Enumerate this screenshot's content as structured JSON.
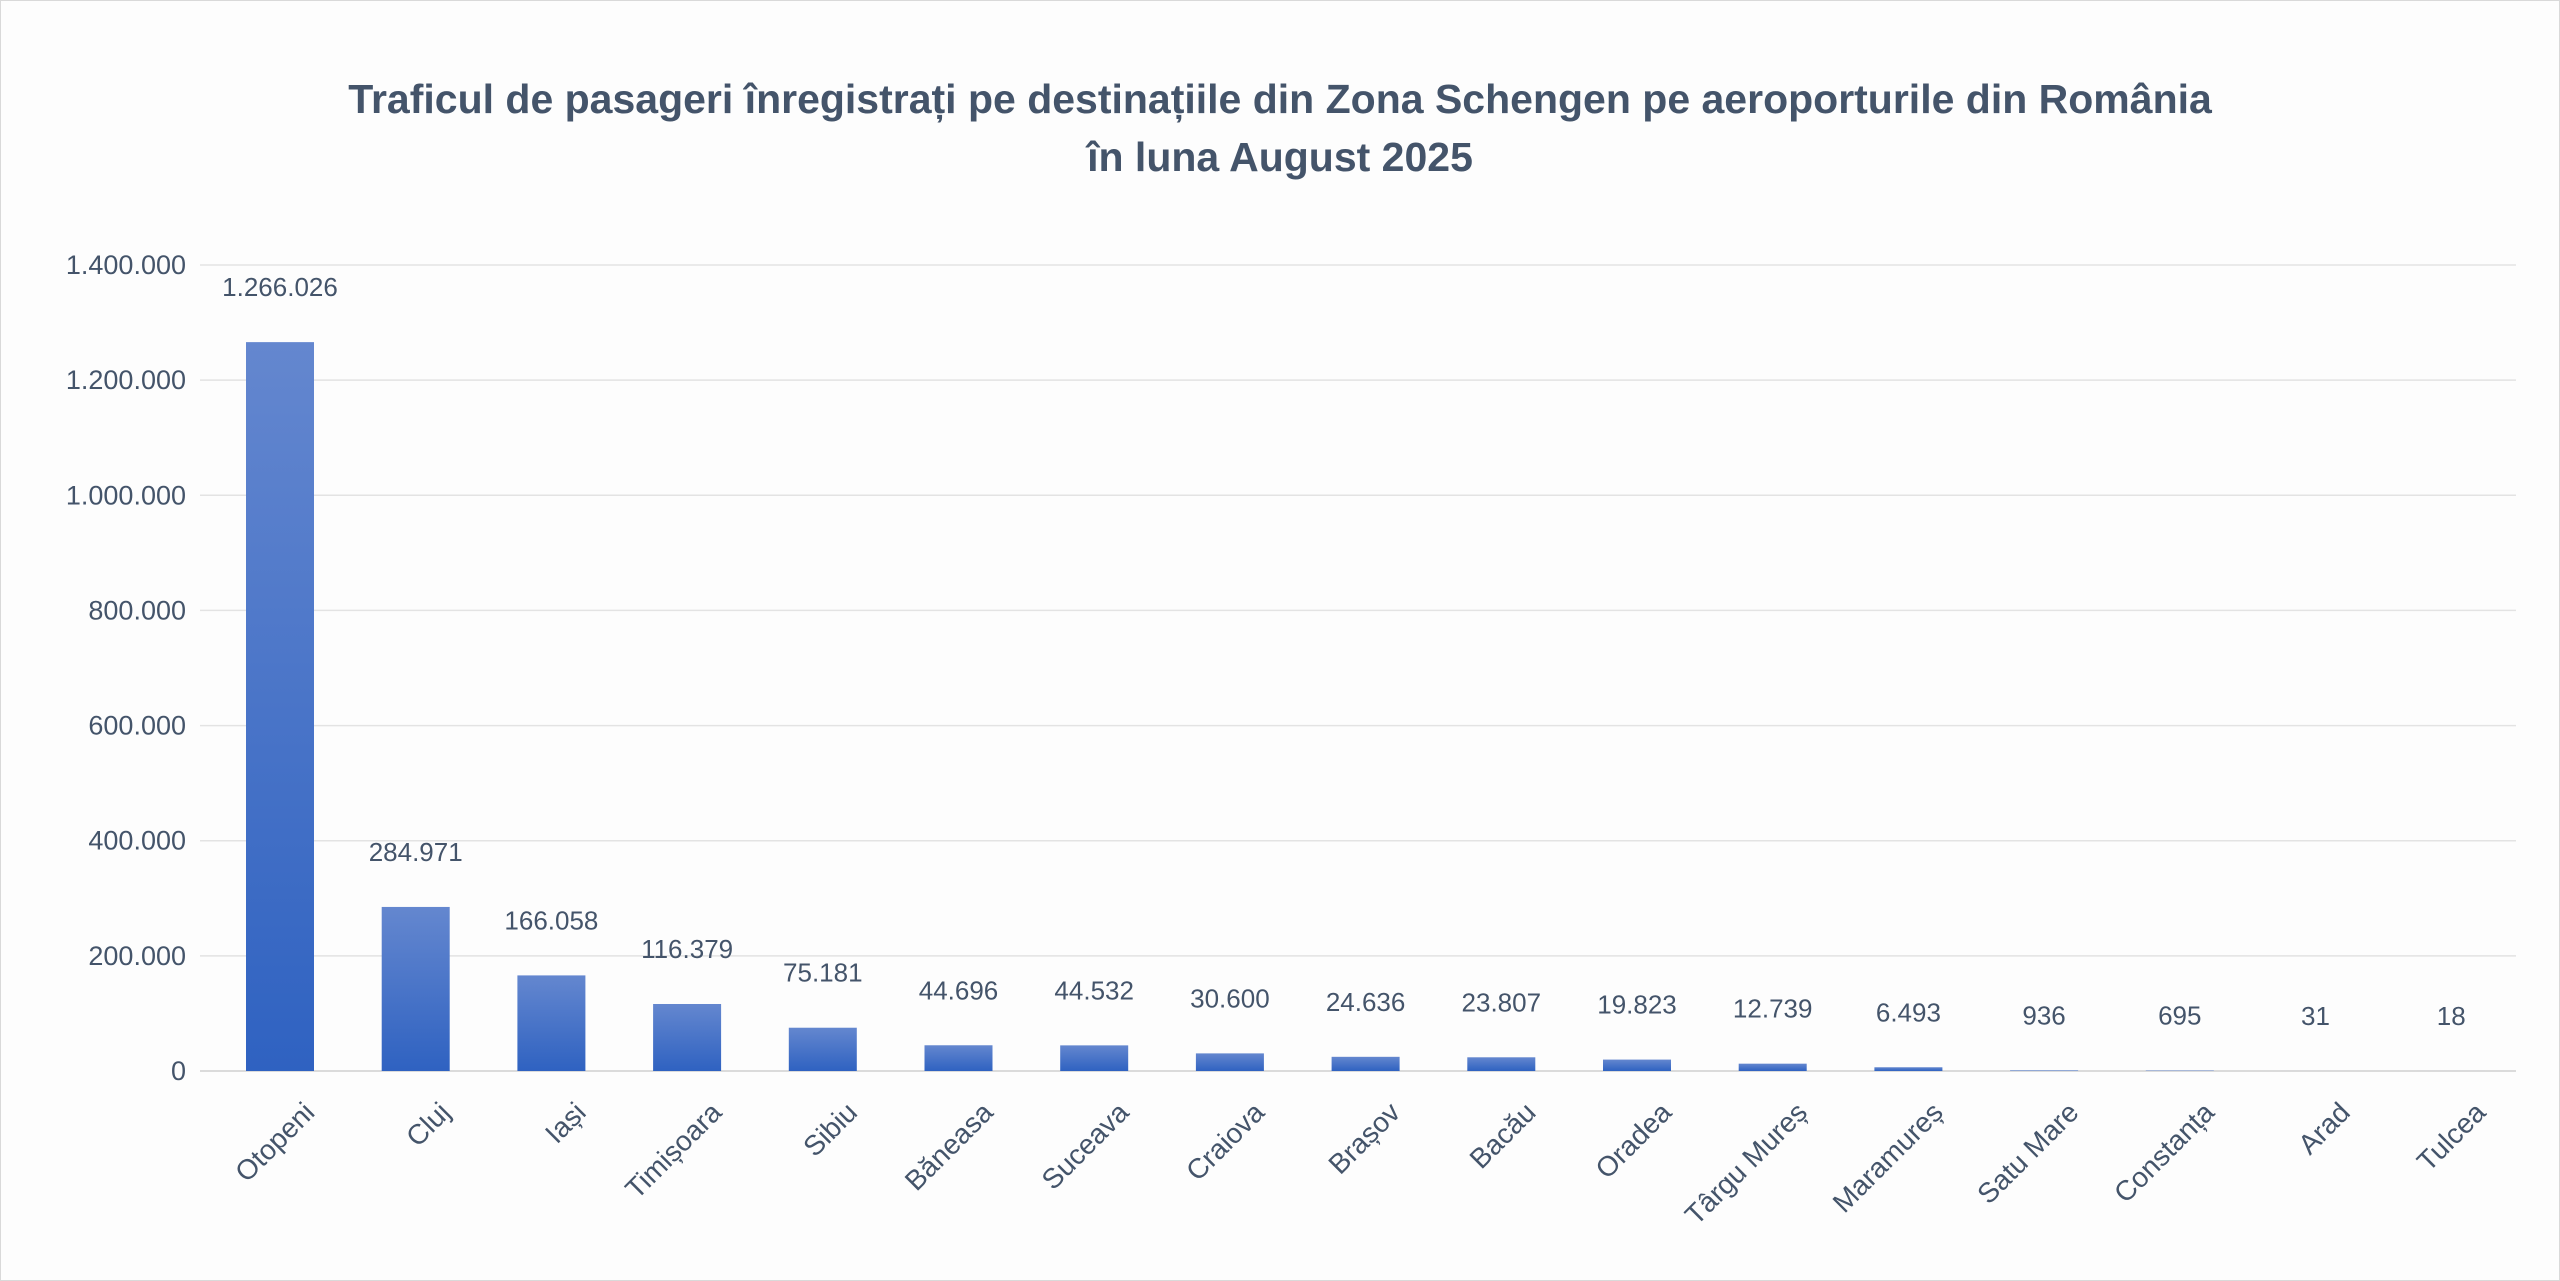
{
  "chart_data": {
    "type": "bar",
    "title": "Traficul de pasageri înregistrați pe destinațiile din Zona Schengen pe aeroporturile din România",
    "subtitle": "în luna August 2025",
    "xlabel": "",
    "ylabel": "",
    "ylim": [
      0,
      1400000
    ],
    "yticks": [
      0,
      200000,
      400000,
      600000,
      800000,
      1000000,
      1200000,
      1400000
    ],
    "ytick_labels": [
      "0",
      "200.000",
      "400.000",
      "600.000",
      "800.000",
      "1.000.000",
      "1.200.000",
      "1.400.000"
    ],
    "grid": true,
    "legend": "none",
    "bar_color_top": "#6487cf",
    "bar_color_bottom": "#2f62c1",
    "categories": [
      "Otopeni",
      "Cluj",
      "Iași",
      "Timișoara",
      "Sibiu",
      "Băneasa",
      "Suceava",
      "Craiova",
      "Brașov",
      "Bacău",
      "Oradea",
      "Târgu Mureș",
      "Maramureș",
      "Satu Mare",
      "Constanța",
      "Arad",
      "Tulcea"
    ],
    "values": [
      1266026,
      284971,
      166058,
      116379,
      75181,
      44696,
      44532,
      30600,
      24636,
      23807,
      19823,
      12739,
      6493,
      936,
      695,
      31,
      18
    ],
    "data_labels": [
      "1.266.026",
      "284.971",
      "166.058",
      "116.379",
      "75.181",
      "44.696",
      "44.532",
      "30.600",
      "24.636",
      "23.807",
      "19.823",
      "12.739",
      "6.493",
      "936",
      "695",
      "31",
      "18"
    ]
  }
}
